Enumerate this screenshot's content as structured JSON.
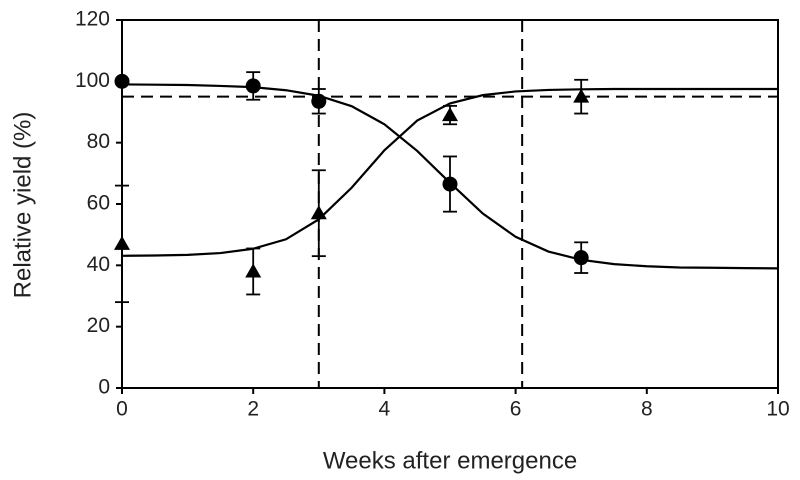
{
  "chart_data": {
    "type": "scatter",
    "xlabel": "Weeks after emergence",
    "ylabel": "Relative yield (%)",
    "xlim": [
      0,
      10
    ],
    "xticks": [
      0,
      2,
      4,
      6,
      8,
      10
    ],
    "ylim": [
      0,
      120
    ],
    "yticks": [
      0,
      20,
      40,
      60,
      80,
      100,
      120
    ],
    "color": "#000000",
    "series": [
      {
        "marker": "circle",
        "x": [
          0,
          2,
          3,
          5,
          7
        ],
        "values": [
          100,
          98.5,
          93.5,
          66.5,
          42.5
        ],
        "errors": [
          0,
          4.5,
          4,
          9,
          5
        ]
      },
      {
        "marker": "triangle",
        "x": [
          0,
          2,
          3,
          5,
          7
        ],
        "values": [
          47,
          38,
          57,
          89,
          95
        ],
        "errors": [
          19,
          7.5,
          14,
          3,
          5.5
        ]
      }
    ],
    "curves": [
      {
        "x": [
          0,
          0.5,
          1,
          1.5,
          2,
          2.5,
          3,
          3.5,
          4,
          4.5,
          5,
          5.5,
          6,
          6.5,
          7,
          7.5,
          8,
          8.5,
          9,
          9.5,
          10
        ],
        "values": [
          99.0,
          98.9,
          98.8,
          98.5,
          98.1,
          97.1,
          95.3,
          91.9,
          86.0,
          77.3,
          66.9,
          56.9,
          49.3,
          44.5,
          41.8,
          40.4,
          39.7,
          39.3,
          39.2,
          39.1,
          39.0
        ]
      },
      {
        "x": [
          0,
          0.5,
          1,
          1.5,
          2,
          2.5,
          3,
          3.5,
          4,
          4.5,
          5,
          5.5,
          6,
          6.5,
          7,
          7.5,
          8,
          8.5,
          9,
          9.5,
          10
        ],
        "values": [
          43.1,
          43.2,
          43.4,
          44.0,
          45.4,
          48.5,
          55.0,
          65.3,
          77.5,
          87.2,
          92.8,
          95.5,
          96.7,
          97.2,
          97.4,
          97.5,
          97.5,
          97.5,
          97.5,
          97.5,
          97.5
        ]
      }
    ],
    "hlines": [
      95
    ],
    "vlines": [
      3,
      6.1
    ]
  }
}
